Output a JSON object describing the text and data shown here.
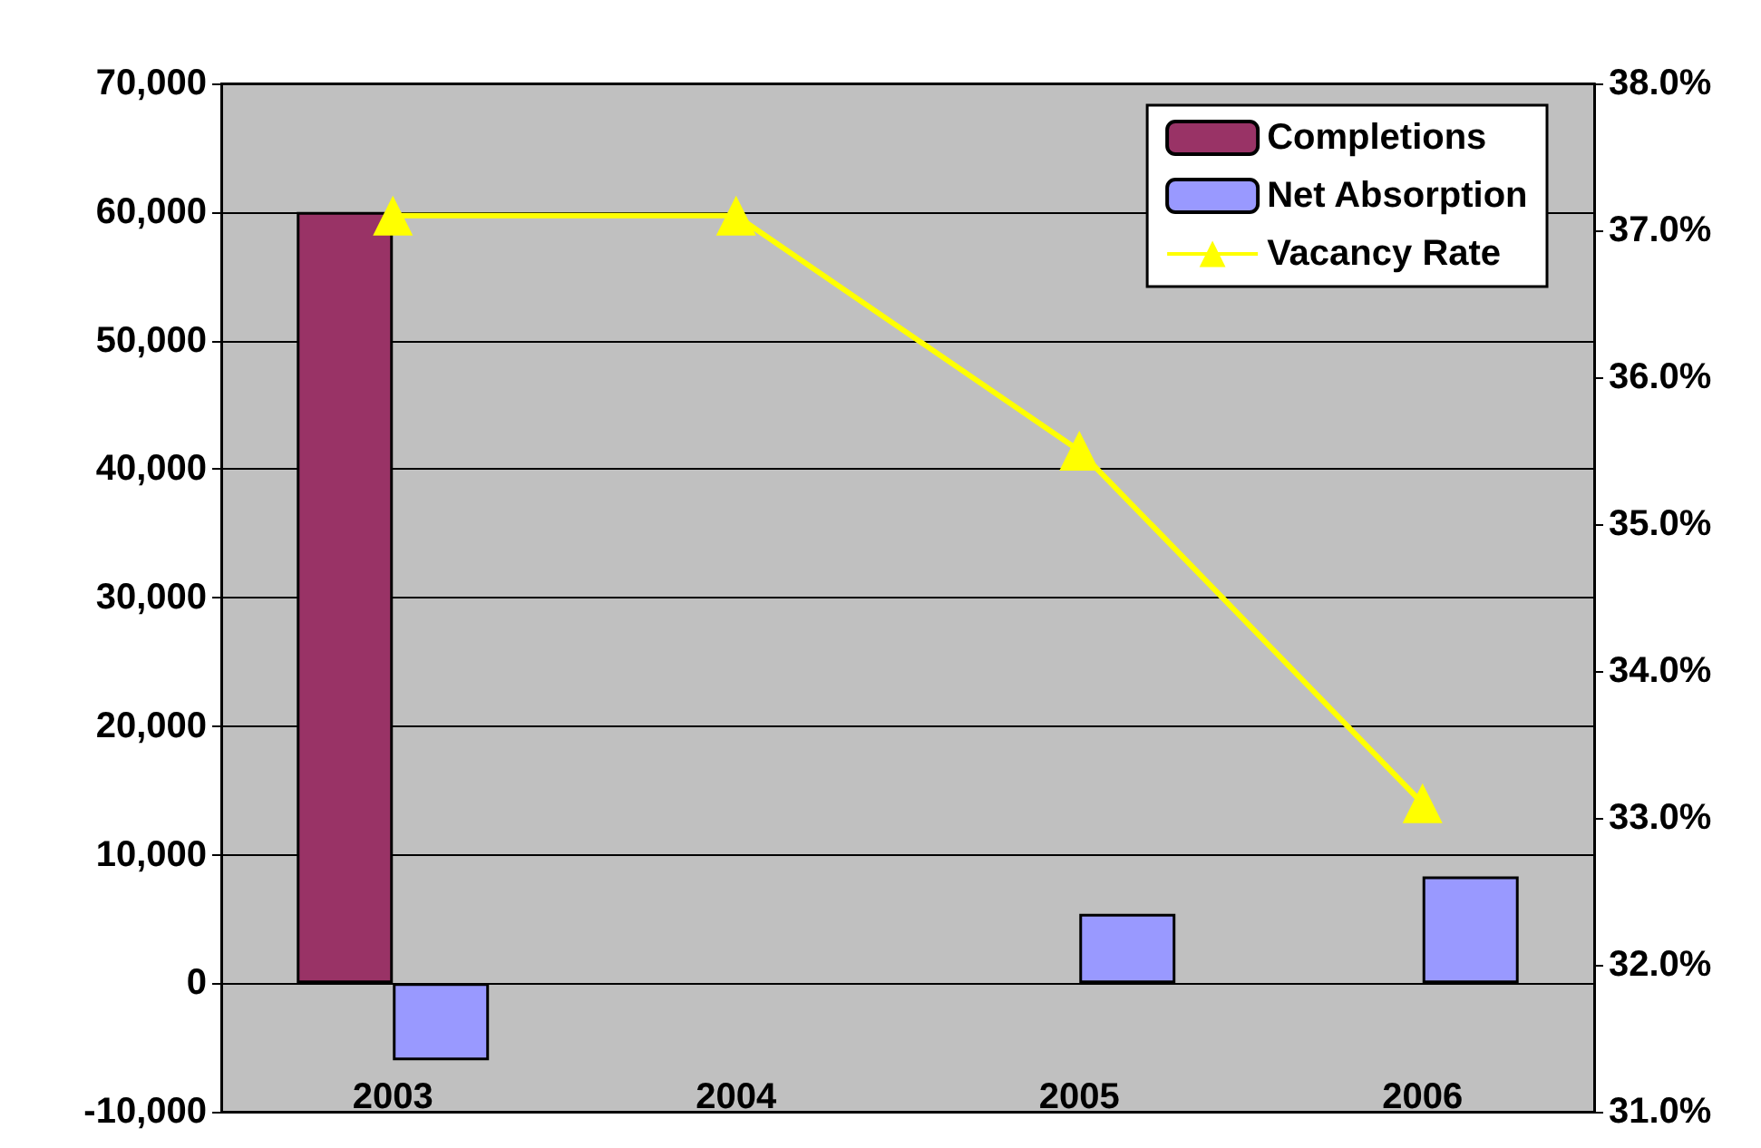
{
  "chart_data": {
    "type": "bar",
    "categories": [
      "2003",
      "2004",
      "2005",
      "2006"
    ],
    "series": [
      {
        "name": "Completions",
        "color": "#993366",
        "values": [
          60000,
          null,
          null,
          null
        ]
      },
      {
        "name": "Net Absorption",
        "color": "#9999ff",
        "values": [
          -6000,
          null,
          5400,
          8300
        ]
      },
      {
        "name": "Vacancy Rate",
        "type": "line",
        "axis": "y2",
        "color": "#ffff00",
        "marker": "triangle",
        "values": [
          37.1,
          37.1,
          35.5,
          33.1
        ]
      }
    ],
    "ylim": [
      -10000,
      70000
    ],
    "yticks": [
      {
        "value": -10000,
        "label": "-10,000"
      },
      0,
      {
        "value": 10000,
        "label": "10,000"
      },
      {
        "value": 20000,
        "label": "20,000"
      },
      {
        "value": 30000,
        "label": "30,000"
      },
      {
        "value": 40000,
        "label": "40,000"
      },
      {
        "value": 50000,
        "label": "50,000"
      },
      {
        "value": 60000,
        "label": "60,000"
      },
      {
        "value": 70000,
        "label": "70,000"
      }
    ],
    "y2lim": [
      31,
      38
    ],
    "y2ticks": [
      {
        "value": 31,
        "label": "31.0%"
      },
      {
        "value": 32,
        "label": "32.0%"
      },
      {
        "value": 33,
        "label": "33.0%"
      },
      {
        "value": 34,
        "label": "34.0%"
      },
      {
        "value": 35,
        "label": "35.0%"
      },
      {
        "value": 36,
        "label": "36.0%"
      },
      {
        "value": 37,
        "label": "37.0%"
      },
      {
        "value": 38,
        "label": "38.0%"
      }
    ],
    "grid": "y",
    "legend": "top right"
  }
}
